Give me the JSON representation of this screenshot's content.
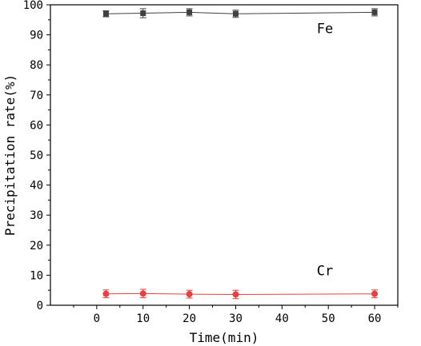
{
  "chart_data": {
    "type": "line",
    "title": "",
    "xlabel": "Time(min)",
    "ylabel": "Precipitation rate(%)",
    "xlim": [
      -10,
      65
    ],
    "ylim": [
      0,
      100
    ],
    "xticks": [
      0,
      10,
      20,
      30,
      40,
      50,
      60
    ],
    "yticks": [
      0,
      10,
      20,
      30,
      40,
      50,
      60,
      70,
      80,
      90,
      100
    ],
    "grid": false,
    "series": [
      {
        "name": "Fe",
        "color": "#404040",
        "marker": "square",
        "x": [
          2,
          10,
          20,
          30,
          60
        ],
        "y": [
          97.0,
          97.2,
          97.5,
          97.0,
          97.5
        ],
        "error": [
          1.0,
          1.5,
          1.2,
          1.2,
          1.2
        ]
      },
      {
        "name": "Cr",
        "color": "#e8403f",
        "marker": "circle",
        "x": [
          2,
          10,
          20,
          30,
          60
        ],
        "y": [
          3.8,
          3.9,
          3.7,
          3.6,
          3.8
        ],
        "error": [
          1.3,
          1.4,
          1.3,
          1.4,
          1.3
        ]
      }
    ],
    "annotations": [
      {
        "text": "Fe",
        "series": 0
      },
      {
        "text": "Cr",
        "series": 1
      }
    ]
  }
}
